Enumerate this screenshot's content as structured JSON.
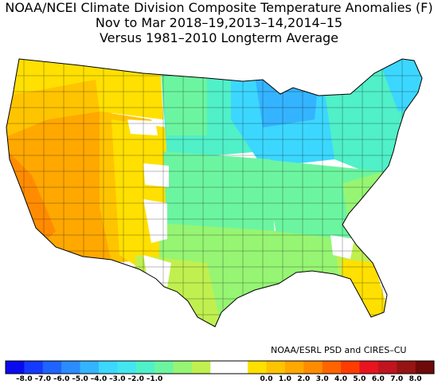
{
  "title": {
    "line1": "NOAA/NCEI Climate Division Composite Temperature Anomalies (F)",
    "line2": "Nov to Mar  2018–19,2013–14,2014–15",
    "line3": "Versus 1981–2010 Longterm Average"
  },
  "credit": "NOAA/ESRL PSD and CIRES–CU",
  "legend": {
    "colors": [
      "#0a0af0",
      "#1439ff",
      "#1e64ff",
      "#2a8cff",
      "#34b4ff",
      "#3cd7ff",
      "#43e6f0",
      "#50f0c8",
      "#6cf5a0",
      "#96f573",
      "#c0f050",
      "#ffffff",
      "#ffffff",
      "#ffe000",
      "#ffc400",
      "#ffa800",
      "#ff8c00",
      "#ff6400",
      "#ff3c00",
      "#e8141e",
      "#c0141e",
      "#961414",
      "#6e0a0a"
    ],
    "tick_labels": [
      "–8.0",
      "–7.0",
      "–6.0",
      "–5.0",
      "–4.0",
      "–3.0",
      "–2.0",
      "–1.0",
      "0.0",
      "1.0",
      "2.0",
      "3.0",
      "4.0",
      "5.0",
      "6.0",
      "7.0",
      "8.0"
    ]
  },
  "map_regions": [
    {
      "name": "pacific-northwest",
      "anomaly": 1.5,
      "color": "#ffe000"
    },
    {
      "name": "california-nevada",
      "anomaly": 3.0,
      "color": "#ffa800"
    },
    {
      "name": "southwest",
      "anomaly": 2.0,
      "color": "#ffc400"
    },
    {
      "name": "rockies",
      "anomaly": 1.0,
      "color": "#ffe000"
    },
    {
      "name": "northern-plains",
      "anomaly": -2.5,
      "color": "#50f0c8"
    },
    {
      "name": "upper-midwest",
      "anomaly": -3.5,
      "color": "#3cd7ff"
    },
    {
      "name": "central-plains",
      "anomaly": -1.5,
      "color": "#6cf5a0"
    },
    {
      "name": "texas",
      "anomaly": -0.5,
      "color": "#c0f050"
    },
    {
      "name": "southeast",
      "anomaly": -1.0,
      "color": "#96f573"
    },
    {
      "name": "northeast",
      "anomaly": -2.0,
      "color": "#6cf5a0"
    },
    {
      "name": "florida",
      "anomaly": 1.5,
      "color": "#ffe000"
    }
  ]
}
